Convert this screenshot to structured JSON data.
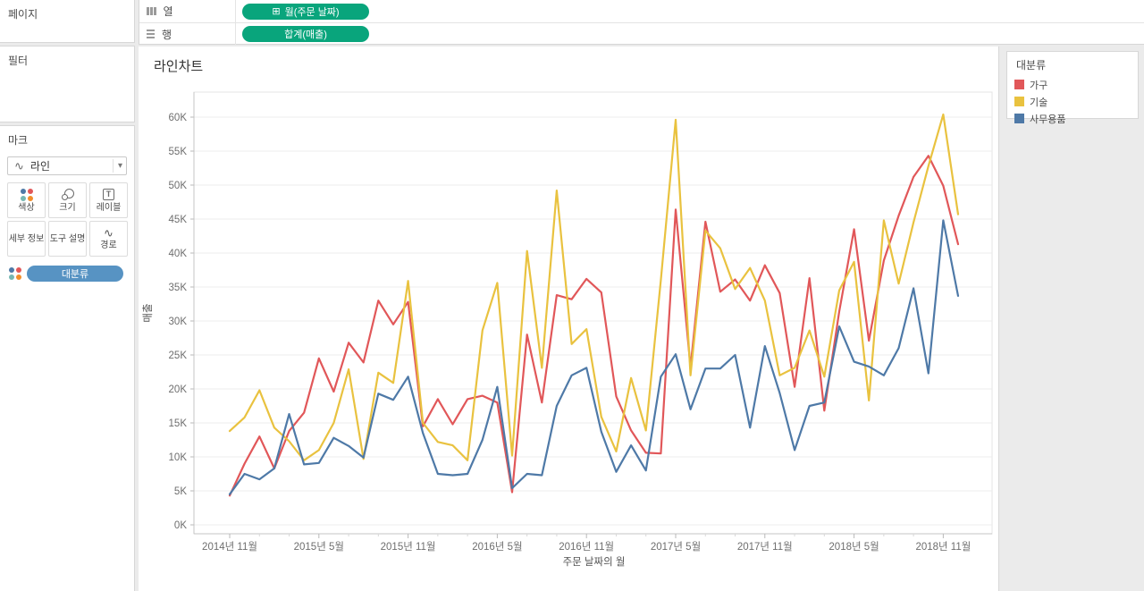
{
  "sidebar": {
    "pages_label": "페이지",
    "filters_label": "필터",
    "marks_label": "마크",
    "mark_type": {
      "icon": "line-mark-icon",
      "label": "라인"
    },
    "mark_buttons": [
      {
        "id": "color",
        "icon": "color-dots-icon",
        "label": "색상"
      },
      {
        "id": "size",
        "icon": "size-circles-icon",
        "label": "크기"
      },
      {
        "id": "label",
        "icon": "text-label-icon",
        "label": "레이블"
      },
      {
        "id": "detail",
        "icon": "",
        "label": "세부 정보"
      },
      {
        "id": "tooltip",
        "icon": "",
        "label": "도구 설명"
      },
      {
        "id": "path",
        "icon": "path-line-icon",
        "label": "경로"
      }
    ],
    "color_pill": {
      "label": "대분류",
      "color": "#5793c3"
    },
    "dot_icon_colors": [
      "#4e79a7",
      "#e15759",
      "#76b7b2",
      "#f28e2b"
    ]
  },
  "shelves": {
    "columns": {
      "label": "열",
      "pill": "월(주문 날짜)",
      "pill_icon": "⊞"
    },
    "rows": {
      "label": "행",
      "pill": "합계(매출)"
    },
    "pill_color": "#09a57c"
  },
  "legend": {
    "title": "대분류",
    "items": [
      {
        "label": "가구",
        "color": "#e15759"
      },
      {
        "label": "기술",
        "color": "#e9c23f"
      },
      {
        "label": "사무용품",
        "color": "#4e79a7"
      }
    ]
  },
  "chart_data": {
    "type": "line",
    "title": "라인차트",
    "xlabel": "주문 날짜의 월",
    "ylabel": "매출",
    "x_start": "2014-11",
    "x_interval": "month",
    "n_points": 50,
    "x_tick_indices": [
      0,
      6,
      12,
      18,
      24,
      30,
      36,
      42,
      48
    ],
    "x_tick_labels": [
      "2014년 11월",
      "2015년 5월",
      "2015년 11월",
      "2016년 5월",
      "2016년 11월",
      "2017년 5월",
      "2017년 11월",
      "2018년 5월",
      "2018년 11월"
    ],
    "ylim": [
      0,
      62000
    ],
    "y_tick_step": 5000,
    "y_tick_labels": [
      "0K",
      "5K",
      "10K",
      "15K",
      "20K",
      "25K",
      "30K",
      "35K",
      "40K",
      "45K",
      "50K",
      "55K",
      "60K"
    ],
    "grid": "horizontal",
    "legend_position": "right",
    "series": [
      {
        "name": "가구",
        "color": "#e15759",
        "values": [
          4300,
          9000,
          13000,
          8300,
          13800,
          16500,
          24500,
          19600,
          26800,
          23900,
          33000,
          29500,
          32800,
          14500,
          18500,
          14800,
          18500,
          19000,
          18000,
          4800,
          28000,
          18000,
          33800,
          33200,
          36200,
          34200,
          18900,
          13900,
          10600,
          10500,
          46400,
          23200,
          44600,
          34300,
          36100,
          33000,
          38200,
          34100,
          20300,
          36300,
          16800,
          31400,
          43500,
          27100,
          38900,
          45500,
          51200,
          54300,
          49900,
          41300
        ]
      },
      {
        "name": "기술",
        "color": "#e9c23f",
        "values": [
          13800,
          15800,
          19800,
          14300,
          12300,
          9500,
          11000,
          15000,
          22900,
          9700,
          22400,
          20900,
          35900,
          15000,
          12200,
          11700,
          9500,
          28600,
          35600,
          10200,
          40300,
          23100,
          49200,
          26600,
          28800,
          15900,
          10800,
          21600,
          13900,
          36000,
          59600,
          22000,
          43300,
          40700,
          34700,
          37800,
          33000,
          22000,
          23100,
          28600,
          21800,
          34500,
          38700,
          18300,
          44800,
          35500,
          44500,
          52800,
          60400,
          45700
        ]
      },
      {
        "name": "사무용품",
        "color": "#4e79a7",
        "values": [
          4500,
          7500,
          6700,
          8300,
          16300,
          8900,
          9100,
          12800,
          11600,
          9900,
          19300,
          18400,
          21800,
          13500,
          7500,
          7300,
          7500,
          12500,
          20300,
          5400,
          7500,
          7300,
          17500,
          22000,
          23100,
          13700,
          7800,
          11700,
          8000,
          21800,
          25100,
          17000,
          23000,
          23000,
          25000,
          14300,
          26300,
          19400,
          11000,
          17500,
          18000,
          29200,
          24000,
          23300,
          22000,
          26000,
          34800,
          22300,
          44800,
          33700
        ]
      }
    ]
  }
}
